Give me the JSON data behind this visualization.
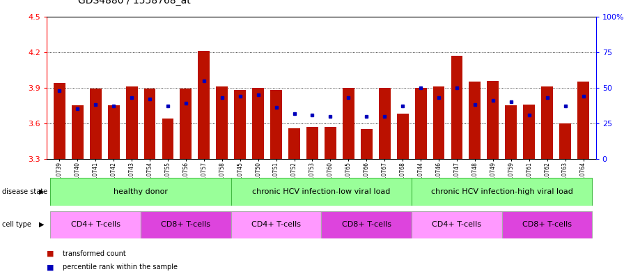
{
  "title": "GDS4880 / 1558768_at",
  "samples": [
    "GSM1210739",
    "GSM1210740",
    "GSM1210741",
    "GSM1210742",
    "GSM1210743",
    "GSM1210754",
    "GSM1210755",
    "GSM1210756",
    "GSM1210757",
    "GSM1210758",
    "GSM1210745",
    "GSM1210750",
    "GSM1210751",
    "GSM1210752",
    "GSM1210753",
    "GSM1210760",
    "GSM1210765",
    "GSM1210766",
    "GSM1210767",
    "GSM1210768",
    "GSM1210744",
    "GSM1210746",
    "GSM1210747",
    "GSM1210748",
    "GSM1210749",
    "GSM1210759",
    "GSM1210761",
    "GSM1210762",
    "GSM1210763",
    "GSM1210764"
  ],
  "bar_values": [
    3.94,
    3.75,
    3.89,
    3.75,
    3.91,
    3.89,
    3.64,
    3.89,
    4.21,
    3.91,
    3.88,
    3.9,
    3.88,
    3.56,
    3.57,
    3.57,
    3.9,
    3.55,
    3.9,
    3.68,
    3.9,
    3.91,
    4.17,
    3.95,
    3.96,
    3.75,
    3.76,
    3.91,
    3.6,
    3.95
  ],
  "percentile_values": [
    48,
    35,
    38,
    37,
    43,
    42,
    37,
    39,
    55,
    43,
    44,
    45,
    36,
    32,
    31,
    30,
    43,
    30,
    30,
    37,
    50,
    43,
    50,
    38,
    41,
    40,
    31,
    43,
    37,
    44
  ],
  "y_min": 3.3,
  "y_max": 4.5,
  "y_ticks": [
    3.3,
    3.6,
    3.9,
    4.2,
    4.5
  ],
  "right_y_ticks": [
    0,
    25,
    50,
    75,
    100
  ],
  "right_y_labels": [
    "0",
    "25",
    "50",
    "75",
    "100%"
  ],
  "bar_color": "#bb1100",
  "dot_color": "#0000bb",
  "bar_width": 0.65,
  "disease_state_groups": [
    {
      "label": "healthy donor",
      "start": 0,
      "end": 9
    },
    {
      "label": "chronic HCV infection-low viral load",
      "start": 10,
      "end": 19
    },
    {
      "label": "chronic HCV infection-high viral load",
      "start": 20,
      "end": 29
    }
  ],
  "cell_type_groups": [
    {
      "label": "CD4+ T-cells",
      "start": 0,
      "end": 4,
      "type": "cd4"
    },
    {
      "label": "CD8+ T-cells",
      "start": 5,
      "end": 9,
      "type": "cd8"
    },
    {
      "label": "CD4+ T-cells",
      "start": 10,
      "end": 14,
      "type": "cd4"
    },
    {
      "label": "CD8+ T-cells",
      "start": 15,
      "end": 19,
      "type": "cd8"
    },
    {
      "label": "CD4+ T-cells",
      "start": 20,
      "end": 24,
      "type": "cd4"
    },
    {
      "label": "CD8+ T-cells",
      "start": 25,
      "end": 29,
      "type": "cd8"
    }
  ],
  "cd4_color": "#ff99ff",
  "cd8_color": "#dd44dd",
  "disease_color": "#99ff99",
  "disease_border_color": "#44bb44",
  "bg_color": "#ffffff",
  "axis_bg_color": "#ffffff",
  "legend_square_size": 8,
  "title_fontsize": 10,
  "tick_label_fontsize": 5.5,
  "annotation_fontsize": 8,
  "legend_fontsize": 8
}
